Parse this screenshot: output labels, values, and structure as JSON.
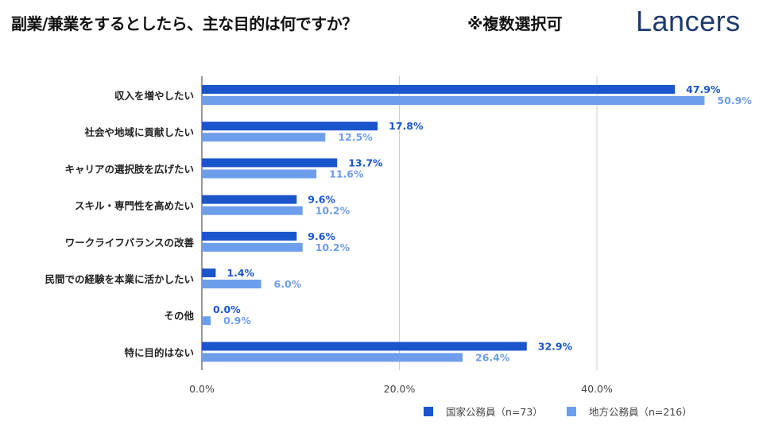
{
  "title": "副業/兼業をするとしたら、主な目的は何ですか？",
  "note": "※複数選択可",
  "logo": "Lancers",
  "chart_data": {
    "type": "bar",
    "orientation": "horizontal",
    "categories": [
      "収入を増やしたい",
      "社会や地域に貢献したい",
      "キャリアの選択肢を広げたい",
      "スキル・専門性を高めたい",
      "ワークライフバランスの改善",
      "民間での経験を本業に活かしたい",
      "その他",
      "特に目的はない"
    ],
    "series": [
      {
        "name": "国家公務員（n=73）",
        "color": "#1a55cc",
        "values": [
          47.9,
          17.8,
          13.7,
          9.6,
          9.6,
          1.4,
          0.0,
          32.9
        ]
      },
      {
        "name": "地方公務員（n=216）",
        "color": "#6d9eeb",
        "values": [
          50.9,
          12.5,
          11.6,
          10.2,
          10.2,
          6.0,
          0.9,
          26.4
        ]
      }
    ],
    "xticks": [
      "0.0%",
      "20.0%",
      "40.0%"
    ],
    "xtick_values": [
      0,
      20,
      40
    ],
    "xlim": [
      0,
      56
    ],
    "grid": true,
    "legend": "bottom-right",
    "data_label_suffix": "%"
  }
}
